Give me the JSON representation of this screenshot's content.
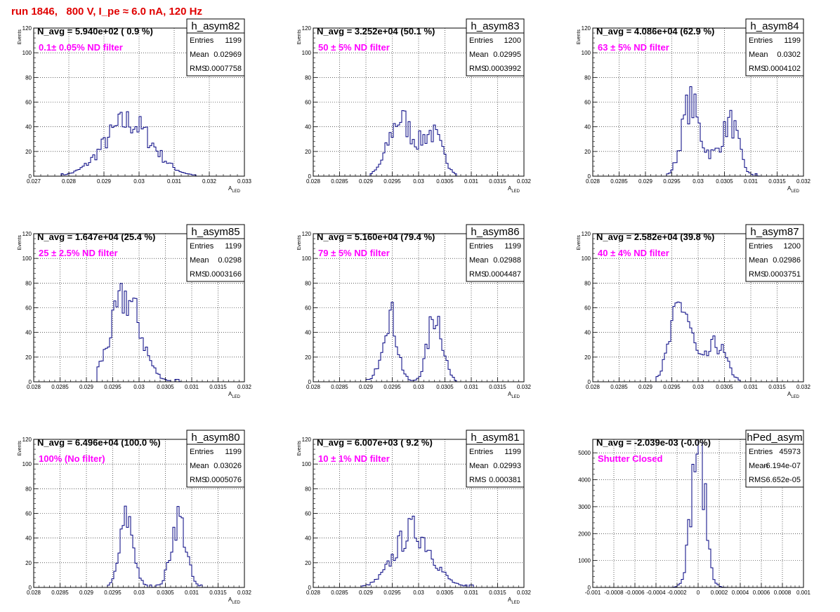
{
  "page": {
    "title": "run 1846,   800 V, I_pe ≈ 6.0 nA, 120 Hz"
  },
  "colors": {
    "hist_line": "#000080",
    "annotation": "#ff00ff",
    "title": "#e00000",
    "grid": "#000000"
  },
  "stat_labels": [
    "Entries",
    "Mean",
    "RMS"
  ],
  "chart_data": [
    {
      "type": "histogram",
      "name": "h_asym82",
      "nlabel": "N_avg = 5.940e+02 ( 0.9 %)",
      "note": "0.1± 0.05% ND filter",
      "stats": {
        "entries": "1199",
        "mean": "0.02969",
        "rms": "0.0007758"
      },
      "xlabel": "A_LED",
      "ylabel": "Events",
      "xlim": [
        0.027,
        0.033
      ],
      "ylim": [
        0,
        120
      ],
      "xticks": [
        0.027,
        0.028,
        0.029,
        0.03,
        0.031,
        0.032,
        0.033
      ],
      "xticklabels": [
        "0.027",
        "0.028",
        "0.029",
        "0.03",
        "0.031",
        "0.032",
        "0.033"
      ],
      "yticks": [
        0,
        20,
        40,
        60,
        80,
        100,
        120
      ],
      "yticklabels": [
        "0",
        "20",
        "40",
        "60",
        "80",
        "100",
        "120"
      ],
      "peaks": [
        {
          "mu": 0.02969,
          "sigma": 0.00068,
          "amp": 44
        }
      ],
      "xmin_data": 0.0278,
      "xmax_data": 0.0316
    },
    {
      "type": "histogram",
      "name": "h_asym83",
      "nlabel": "N_avg = 3.252e+04 (50.1 %)",
      "note": "50 ± 5% ND filter",
      "stats": {
        "entries": "1200",
        "mean": "0.02995",
        "rms": "0.0003992"
      },
      "xlabel": "A_LED",
      "ylabel": "Events",
      "xlim": [
        0.028,
        0.032
      ],
      "ylim": [
        0,
        120
      ],
      "xticks": [
        0.028,
        0.0285,
        0.029,
        0.0295,
        0.03,
        0.0305,
        0.031,
        0.0315,
        0.032
      ],
      "xticklabels": [
        "0.028",
        "0.0285",
        "0.029",
        "0.0295",
        "0.03",
        "0.0305",
        "0.031",
        "0.0315",
        "0.032"
      ],
      "yticks": [
        0,
        20,
        40,
        60,
        80,
        100,
        120
      ],
      "yticklabels": [
        "0",
        "20",
        "40",
        "60",
        "80",
        "100",
        "120"
      ],
      "peaks": [
        {
          "mu": 0.02965,
          "sigma": 0.00022,
          "amp": 46
        },
        {
          "mu": 0.03025,
          "sigma": 0.0002,
          "amp": 34
        }
      ],
      "xmin_data": 0.0291,
      "xmax_data": 0.0307
    },
    {
      "type": "histogram",
      "name": "h_asym84",
      "nlabel": "N_avg = 4.086e+04 (62.9 %)",
      "note": "63 ± 5% ND filter",
      "stats": {
        "entries": "1199",
        "mean": "0.0302",
        "rms": "0.0004102"
      },
      "xlabel": "A_LED",
      "ylabel": "Events",
      "xlim": [
        0.028,
        0.032
      ],
      "ylim": [
        0,
        120
      ],
      "xticks": [
        0.028,
        0.0285,
        0.029,
        0.0295,
        0.03,
        0.0305,
        0.031,
        0.0315,
        0.032
      ],
      "xticklabels": [
        "0.028",
        "0.0285",
        "0.029",
        "0.0295",
        "0.03",
        "0.0305",
        "0.031",
        "0.0315",
        "0.032"
      ],
      "yticks": [
        0,
        20,
        40,
        60,
        80,
        100,
        120
      ],
      "yticklabels": [
        "0",
        "20",
        "40",
        "60",
        "80",
        "100",
        "120"
      ],
      "peaks": [
        {
          "mu": 0.02985,
          "sigma": 0.00016,
          "amp": 58
        },
        {
          "mu": 0.03062,
          "sigma": 0.00015,
          "amp": 42
        },
        {
          "mu": 0.03025,
          "sigma": 0.00018,
          "amp": 14
        }
      ],
      "xmin_data": 0.0293,
      "xmax_data": 0.0312
    },
    {
      "type": "histogram",
      "name": "h_asym85",
      "nlabel": "N_avg = 1.647e+04 (25.4 %)",
      "note": "25 ± 2.5% ND filter",
      "stats": {
        "entries": "1199",
        "mean": "0.0298",
        "rms": "0.0003166"
      },
      "xlabel": "A_LED",
      "ylabel": "Events",
      "xlim": [
        0.028,
        0.032
      ],
      "ylim": [
        0,
        120
      ],
      "xticks": [
        0.028,
        0.0285,
        0.029,
        0.0295,
        0.03,
        0.0305,
        0.031,
        0.0315,
        0.032
      ],
      "xticklabels": [
        "0.028",
        "0.0285",
        "0.029",
        "0.0295",
        "0.03",
        "0.0305",
        "0.031",
        "0.0315",
        "0.032"
      ],
      "yticks": [
        0,
        20,
        40,
        60,
        80,
        100,
        120
      ],
      "yticklabels": [
        "0",
        "20",
        "40",
        "60",
        "80",
        "100",
        "120"
      ],
      "peaks": [
        {
          "mu": 0.02975,
          "sigma": 0.00028,
          "amp": 68
        }
      ],
      "xmin_data": 0.0292,
      "xmax_data": 0.0308
    },
    {
      "type": "histogram",
      "name": "h_asym86",
      "nlabel": "N_avg = 5.160e+04 (79.4 %)",
      "note": "79 ± 5% ND filter",
      "stats": {
        "entries": "1199",
        "mean": "0.02988",
        "rms": "0.0004487"
      },
      "xlabel": "A_LED",
      "ylabel": "Events",
      "xlim": [
        0.028,
        0.032
      ],
      "ylim": [
        0,
        120
      ],
      "xticks": [
        0.028,
        0.0285,
        0.029,
        0.0295,
        0.03,
        0.0305,
        0.031,
        0.0315,
        0.032
      ],
      "xticklabels": [
        "0.028",
        "0.0285",
        "0.029",
        "0.0295",
        "0.03",
        "0.0305",
        "0.031",
        "0.0315",
        "0.032"
      ],
      "yticks": [
        0,
        20,
        40,
        60,
        80,
        100,
        120
      ],
      "yticklabels": [
        "0",
        "20",
        "40",
        "60",
        "80",
        "100",
        "120"
      ],
      "peaks": [
        {
          "mu": 0.02945,
          "sigma": 0.00014,
          "amp": 55
        },
        {
          "mu": 0.03032,
          "sigma": 0.00014,
          "amp": 55
        }
      ],
      "xmin_data": 0.029,
      "xmax_data": 0.0308
    },
    {
      "type": "histogram",
      "name": "h_asym87",
      "nlabel": "N_avg = 2.582e+04 (39.8 %)",
      "note": "40 ± 4% ND filter",
      "stats": {
        "entries": "1200",
        "mean": "0.02986",
        "rms": "0.0003751"
      },
      "xlabel": "A_LED",
      "ylabel": "Events",
      "xlim": [
        0.028,
        0.032
      ],
      "ylim": [
        0,
        120
      ],
      "xticks": [
        0.028,
        0.0285,
        0.029,
        0.0295,
        0.03,
        0.0305,
        0.031,
        0.0315,
        0.032
      ],
      "xticklabels": [
        "0.028",
        "0.0285",
        "0.029",
        "0.0295",
        "0.03",
        "0.0305",
        "0.031",
        "0.0315",
        "0.032"
      ],
      "yticks": [
        0,
        20,
        40,
        60,
        80,
        100,
        120
      ],
      "yticklabels": [
        "0",
        "20",
        "40",
        "60",
        "80",
        "100",
        "120"
      ],
      "peaks": [
        {
          "mu": 0.02968,
          "sigma": 0.0002,
          "amp": 62
        },
        {
          "mu": 0.03035,
          "sigma": 0.00018,
          "amp": 30
        }
      ],
      "xmin_data": 0.0292,
      "xmax_data": 0.0308
    },
    {
      "type": "histogram",
      "name": "h_asym80",
      "nlabel": "N_avg = 6.496e+04 (100.0 %)",
      "note": "100% (No filter)",
      "stats": {
        "entries": "1199",
        "mean": "0.03026",
        "rms": "0.0005076"
      },
      "xlabel": "A_LED",
      "ylabel": "Events",
      "xlim": [
        0.028,
        0.032
      ],
      "ylim": [
        0,
        120
      ],
      "xticks": [
        0.028,
        0.0285,
        0.029,
        0.0295,
        0.03,
        0.0305,
        0.031,
        0.0315,
        0.032
      ],
      "xticklabels": [
        "0.028",
        "0.0285",
        "0.029",
        "0.0295",
        "0.03",
        "0.0305",
        "0.031",
        "0.0315",
        "0.032"
      ],
      "yticks": [
        0,
        20,
        40,
        60,
        80,
        100,
        120
      ],
      "yticklabels": [
        "0",
        "20",
        "40",
        "60",
        "80",
        "100",
        "120"
      ],
      "peaks": [
        {
          "mu": 0.02977,
          "sigma": 0.00013,
          "amp": 56
        },
        {
          "mu": 0.03075,
          "sigma": 0.00014,
          "amp": 56
        }
      ],
      "xmin_data": 0.0294,
      "xmax_data": 0.0315
    },
    {
      "type": "histogram",
      "name": "h_asym81",
      "nlabel": "N_avg = 6.007e+03 ( 9.2 %)",
      "note": "10 ± 1% ND filter",
      "stats": {
        "entries": "1199",
        "mean": "0.02993",
        "rms": "0.000381"
      },
      "xlabel": "A_LED",
      "ylabel": "Events",
      "xlim": [
        0.028,
        0.032
      ],
      "ylim": [
        0,
        120
      ],
      "xticks": [
        0.028,
        0.0285,
        0.029,
        0.0295,
        0.03,
        0.0305,
        0.031,
        0.0315,
        0.032
      ],
      "xticklabels": [
        "0.028",
        "0.0285",
        "0.029",
        "0.0295",
        "0.03",
        "0.0305",
        "0.031",
        "0.0315",
        "0.032"
      ],
      "yticks": [
        0,
        20,
        40,
        60,
        80,
        100,
        120
      ],
      "yticklabels": [
        "0",
        "20",
        "40",
        "60",
        "80",
        "100",
        "120"
      ],
      "peaks": [
        {
          "mu": 0.0299,
          "sigma": 0.00035,
          "amp": 46
        }
      ],
      "xmin_data": 0.0288,
      "xmax_data": 0.0311
    },
    {
      "type": "histogram",
      "name": "hPed_asym",
      "nlabel": "N_avg = -2.039e-03 (-0.0%)",
      "note": "Shutter Closed",
      "stats": {
        "entries": "45973",
        "mean": "-6.194e-07",
        "rms": "6.652e-05"
      },
      "xlabel": "",
      "ylabel": "",
      "xlim": [
        -0.001,
        0.001
      ],
      "ylim": [
        0,
        5500
      ],
      "xticks": [
        -0.001,
        -0.0008,
        -0.0006,
        -0.0004,
        -0.0002,
        0,
        0.0002,
        0.0004,
        0.0006,
        0.0008,
        0.001
      ],
      "xticklabels": [
        "-0.001",
        "-0.0008",
        "-0.0006",
        "-0.0004",
        "-0.0002",
        "0",
        "0.0002",
        "0.0004",
        "0.0006",
        "0.0008",
        "0.001"
      ],
      "yticks": [
        0,
        1000,
        2000,
        3000,
        4000,
        5000
      ],
      "yticklabels": [
        "0",
        "1000",
        "2000",
        "3000",
        "4000",
        "5000"
      ],
      "peaks": [
        {
          "mu": 0.0,
          "sigma": 6.6e-05,
          "amp": 5300
        }
      ],
      "xmin_data": -0.0003,
      "xmax_data": 0.0003
    }
  ]
}
